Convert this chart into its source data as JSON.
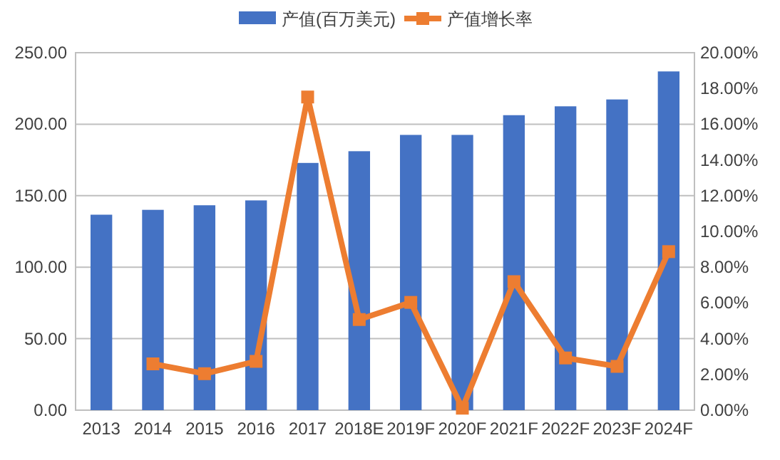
{
  "chart_data": {
    "type": "bar",
    "categories": [
      "2013",
      "2014",
      "2015",
      "2016",
      "2017",
      "2018E",
      "2019F",
      "2020F",
      "2021F",
      "2022F",
      "2023F",
      "2024F"
    ],
    "series": [
      {
        "name": "产值(百万美元)",
        "color": "#4472c4",
        "values": [
          136.7,
          140.1,
          143.3,
          146.7,
          172.9,
          181.1,
          192.5,
          192.5,
          206.3,
          212.5,
          217.3,
          236.9
        ]
      },
      {
        "name": "产值增长率",
        "type": "line",
        "axis": "y2",
        "color": "#ed7d31",
        "marker": "square",
        "values": [
          null,
          2.59,
          2.04,
          2.73,
          17.52,
          5.07,
          6.03,
          0.11,
          7.19,
          2.92,
          2.45,
          8.87
        ]
      }
    ],
    "ylim": [
      0,
      250
    ],
    "yticks": [
      {
        "value": 0,
        "label": "0.00"
      },
      {
        "value": 50,
        "label": "50.00"
      },
      {
        "value": 100,
        "label": "100.00"
      },
      {
        "value": 150,
        "label": "150.00"
      },
      {
        "value": 200,
        "label": "200.00"
      },
      {
        "value": 250,
        "label": "250.00"
      }
    ],
    "y2lim": [
      0,
      20
    ],
    "y2ticks": [
      {
        "value": 0,
        "label": "0.00%"
      },
      {
        "value": 2,
        "label": "2.00%"
      },
      {
        "value": 4,
        "label": "4.00%"
      },
      {
        "value": 6,
        "label": "6.00%"
      },
      {
        "value": 8,
        "label": "8.00%"
      },
      {
        "value": 10,
        "label": "10.00%"
      },
      {
        "value": 12,
        "label": "12.00%"
      },
      {
        "value": 14,
        "label": "14.00%"
      },
      {
        "value": 16,
        "label": "16.00%"
      },
      {
        "value": 18,
        "label": "18.00%"
      },
      {
        "value": 20,
        "label": "20.00%"
      }
    ],
    "grid": "y",
    "legend": "top"
  }
}
